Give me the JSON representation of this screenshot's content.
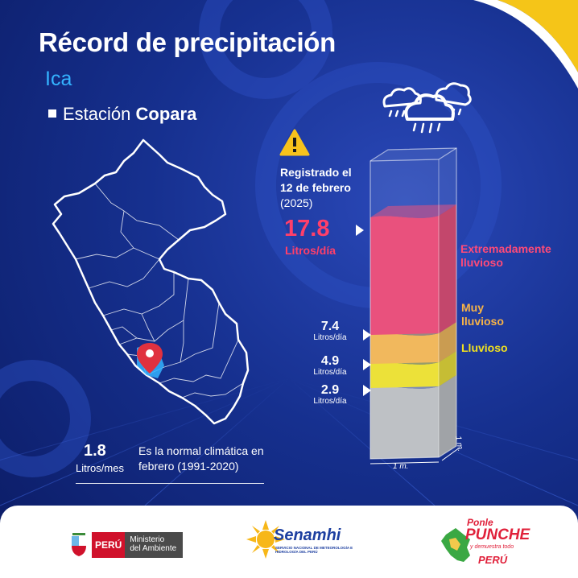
{
  "title": "Récord de precipitación",
  "region": "Ica",
  "station": {
    "prefix": "Estación",
    "name": "Copara"
  },
  "record": {
    "text_line1": "Registrado el",
    "text_line2": "12 de febrero",
    "year": "(2025)",
    "value": "17.8",
    "unit": "Litros/día"
  },
  "chart_data": {
    "type": "bar",
    "title": "Récord de precipitación",
    "ylim": [
      0,
      20
    ],
    "thresholds": [
      {
        "value": 2.9,
        "label": "2.9",
        "unit": "Litros/día"
      },
      {
        "value": 4.9,
        "label": "4.9",
        "unit": "Litros/día"
      },
      {
        "value": 7.4,
        "label": "7.4",
        "unit": "Litros/día"
      }
    ],
    "categories": [
      {
        "name": "Lluvioso",
        "from": 2.9,
        "to": 4.9,
        "color": "#f2e21e"
      },
      {
        "name": "Muy lluvioso",
        "from": 4.9,
        "to": 7.4,
        "color": "#f7b347"
      },
      {
        "name": "Extremadamente lluvioso",
        "from": 7.4,
        "to": 17.8,
        "color": "#ee3e6b"
      }
    ],
    "record_value": 17.8,
    "record_unit": "Litros/día",
    "normal": {
      "value": 1.8,
      "unit": "Litros/mes"
    },
    "dimensions": {
      "width_label": "1 m.",
      "depth_label": "1 m."
    }
  },
  "categories_text": {
    "extreme_line1": "Extremadamente",
    "extreme_line2": "lluvioso",
    "very_line1": "Muy",
    "very_line2": "lluvioso",
    "rainy": "Lluvioso"
  },
  "colors": {
    "background": "#16308f",
    "title": "#ffffff",
    "region": "#34b3ff",
    "record": "#ff3f6a",
    "extreme": "#ee3e6b",
    "very_rainy": "#f7b347",
    "rainy": "#f2e21e",
    "grey_base": "#bdbdbd",
    "corner": "#f5c518"
  },
  "normal": {
    "value": "1.8",
    "unit": "Litros/mes",
    "text": "Es la normal climática en febrero (1991-2020)"
  },
  "icons": {
    "warning": "warning-triangle-icon",
    "clouds": "rain-clouds-icon",
    "pin": "location-pin-icon"
  },
  "footer": {
    "peru_label": "PERÚ",
    "ministry_line1": "Ministerio",
    "ministry_line2": "del Ambiente",
    "senamhi_name": "Senamhi",
    "senamhi_sub": "SERVICIO NACIONAL DE METEOROLOGÍA E HIDROLOGÍA DEL PERÚ",
    "ponle_line1": "Ponle",
    "ponle_line2": "PUNCHE",
    "ponle_line3": "y demuestra todo",
    "ponle_line4": "PERÚ"
  }
}
